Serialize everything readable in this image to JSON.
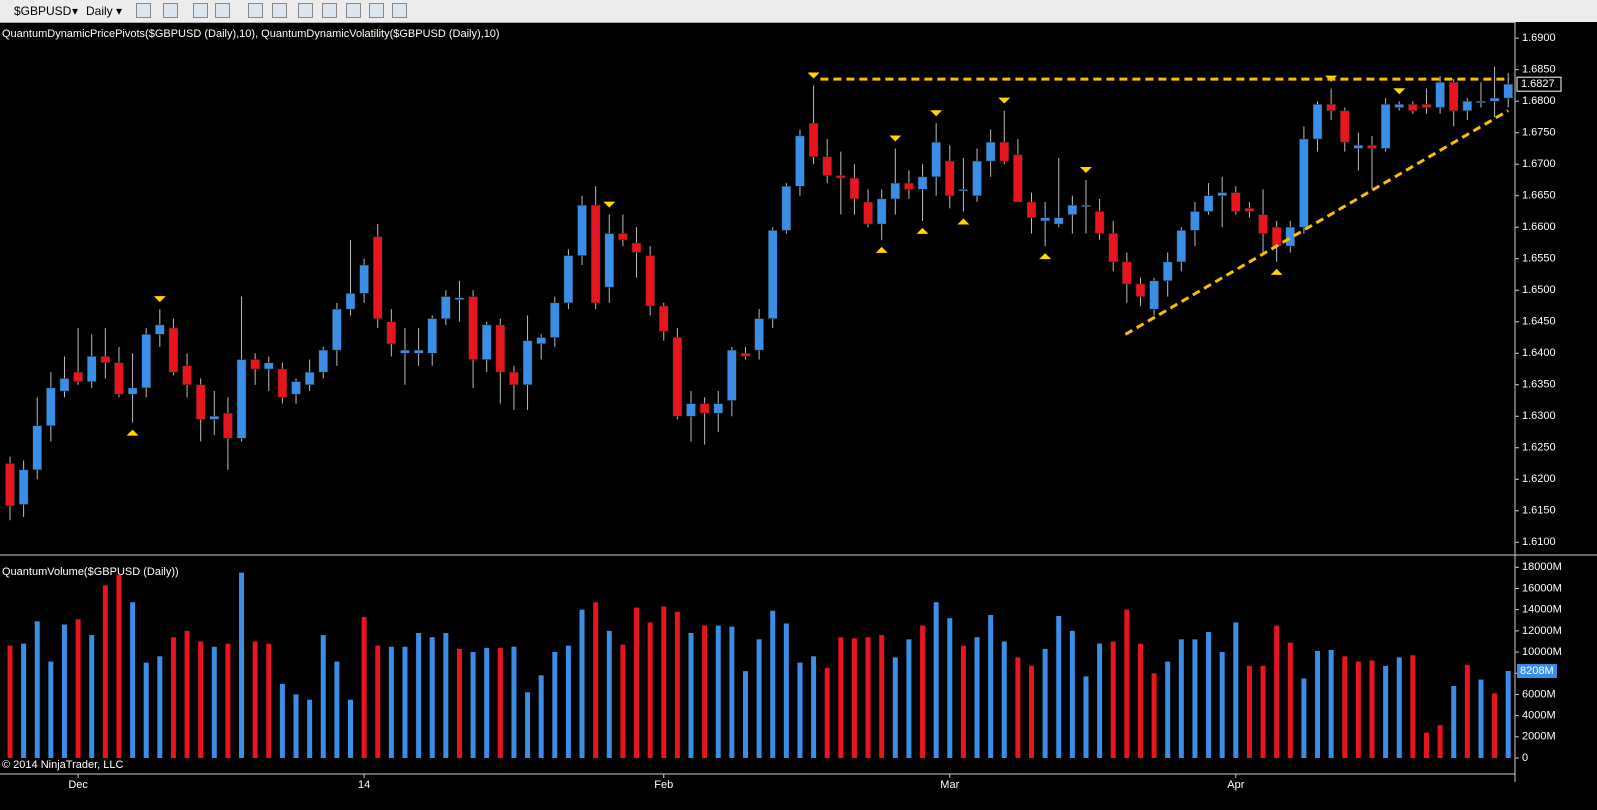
{
  "toolbar": {
    "symbol": "$GBPUSD",
    "interval": "Daily"
  },
  "chart_data": [
    {
      "type": "candlestick",
      "title": "QuantumDynamicPricePivots($GBPUSD (Daily),10), QuantumDynamicVolatility($GBPUSD (Daily),10)",
      "up_color": "#3a8ee6",
      "down_color": "#e8141e",
      "pivot_color": "#ffd700",
      "line_color": "#f5c000",
      "open": [
        1.6225,
        1.616,
        1.6215,
        1.6285,
        1.634,
        1.637,
        1.6355,
        1.6395,
        1.6385,
        1.6335,
        1.6345,
        1.643,
        1.644,
        1.638,
        1.635,
        1.6295,
        1.6305,
        1.6265,
        1.639,
        1.6375,
        1.6375,
        1.6335,
        1.635,
        1.637,
        1.6405,
        1.647,
        1.6495,
        1.6585,
        1.645,
        1.64,
        1.64,
        1.64,
        1.6455,
        1.6485,
        1.649,
        1.639,
        1.6445,
        1.637,
        1.635,
        1.6415,
        1.6425,
        1.648,
        1.6555,
        1.6635,
        1.6505,
        1.659,
        1.6575,
        1.6555,
        1.6475,
        1.6425,
        1.63,
        1.632,
        1.6305,
        1.6325,
        1.64,
        1.6405,
        1.6455,
        1.6595,
        1.6665,
        1.6765,
        1.6712,
        1.6682,
        1.6678,
        1.664,
        1.6605,
        1.6645,
        1.667,
        1.666,
        1.668,
        1.6705,
        1.666,
        1.665,
        1.6705,
        1.6735,
        1.6715,
        1.664,
        1.661,
        1.6605,
        1.662,
        1.6635,
        1.6625,
        1.659,
        1.6545,
        1.651,
        1.647,
        1.6515,
        1.6545,
        1.6595,
        1.6625,
        1.665,
        1.6655,
        1.663,
        1.662,
        1.66,
        1.657,
        1.66,
        1.674,
        1.6795,
        1.6785,
        1.6725,
        1.673,
        1.6725,
        1.679,
        1.6795,
        1.6795,
        1.679,
        1.683,
        1.6785,
        1.6798,
        1.68,
        1.6805
      ],
      "high": [
        1.6236,
        1.623,
        1.633,
        1.637,
        1.6395,
        1.644,
        1.643,
        1.644,
        1.641,
        1.64,
        1.644,
        1.647,
        1.6455,
        1.64,
        1.636,
        1.634,
        1.633,
        1.649,
        1.64,
        1.6395,
        1.6385,
        1.636,
        1.639,
        1.641,
        1.648,
        1.658,
        1.655,
        1.6605,
        1.647,
        1.644,
        1.644,
        1.646,
        1.65,
        1.6515,
        1.65,
        1.645,
        1.6455,
        1.638,
        1.646,
        1.643,
        1.649,
        1.6565,
        1.665,
        1.6665,
        1.662,
        1.662,
        1.66,
        1.657,
        1.648,
        1.644,
        1.634,
        1.633,
        1.634,
        1.641,
        1.641,
        1.647,
        1.66,
        1.667,
        1.6755,
        1.6825,
        1.674,
        1.672,
        1.67,
        1.666,
        1.666,
        1.6725,
        1.669,
        1.67,
        1.6765,
        1.673,
        1.671,
        1.6725,
        1.6755,
        1.6785,
        1.674,
        1.6655,
        1.664,
        1.671,
        1.665,
        1.6675,
        1.6645,
        1.661,
        1.656,
        1.652,
        1.652,
        1.656,
        1.66,
        1.664,
        1.667,
        1.668,
        1.6665,
        1.664,
        1.666,
        1.661,
        1.661,
        1.676,
        1.68,
        1.682,
        1.679,
        1.675,
        1.6745,
        1.6805,
        1.68,
        1.68,
        1.682,
        1.684,
        1.6835,
        1.6805,
        1.683,
        1.6855,
        1.6845
      ],
      "low": [
        1.6135,
        1.614,
        1.62,
        1.626,
        1.633,
        1.635,
        1.6345,
        1.636,
        1.633,
        1.629,
        1.633,
        1.641,
        1.6365,
        1.633,
        1.626,
        1.627,
        1.6215,
        1.626,
        1.635,
        1.634,
        1.632,
        1.632,
        1.634,
        1.636,
        1.638,
        1.646,
        1.648,
        1.644,
        1.6395,
        1.635,
        1.638,
        1.638,
        1.6445,
        1.645,
        1.6345,
        1.637,
        1.632,
        1.631,
        1.631,
        1.639,
        1.641,
        1.647,
        1.654,
        1.647,
        1.648,
        1.657,
        1.652,
        1.646,
        1.642,
        1.6295,
        1.626,
        1.6255,
        1.6275,
        1.63,
        1.639,
        1.639,
        1.644,
        1.659,
        1.665,
        1.67,
        1.667,
        1.662,
        1.662,
        1.66,
        1.658,
        1.662,
        1.6645,
        1.661,
        1.665,
        1.663,
        1.6625,
        1.664,
        1.668,
        1.67,
        1.664,
        1.659,
        1.657,
        1.66,
        1.659,
        1.659,
        1.658,
        1.653,
        1.648,
        1.6475,
        1.646,
        1.649,
        1.653,
        1.657,
        1.662,
        1.66,
        1.662,
        1.6615,
        1.656,
        1.6545,
        1.656,
        1.659,
        1.672,
        1.677,
        1.672,
        1.669,
        1.666,
        1.672,
        1.6785,
        1.678,
        1.678,
        1.678,
        1.676,
        1.677,
        1.679,
        1.6775,
        1.679
      ],
      "close": [
        1.6158,
        1.6215,
        1.6285,
        1.6345,
        1.636,
        1.6355,
        1.6395,
        1.6385,
        1.6335,
        1.6345,
        1.643,
        1.6445,
        1.637,
        1.635,
        1.6295,
        1.63,
        1.6265,
        1.639,
        1.6375,
        1.6385,
        1.633,
        1.6355,
        1.637,
        1.6405,
        1.647,
        1.6495,
        1.654,
        1.6455,
        1.6415,
        1.6405,
        1.6405,
        1.6455,
        1.649,
        1.6488,
        1.639,
        1.6445,
        1.637,
        1.635,
        1.642,
        1.6425,
        1.648,
        1.6555,
        1.6635,
        1.648,
        1.659,
        1.658,
        1.656,
        1.6475,
        1.6435,
        1.63,
        1.632,
        1.6305,
        1.632,
        1.6405,
        1.6395,
        1.6455,
        1.6595,
        1.6665,
        1.6745,
        1.6712,
        1.6682,
        1.6678,
        1.6645,
        1.6605,
        1.6645,
        1.667,
        1.666,
        1.668,
        1.6735,
        1.665,
        1.666,
        1.6705,
        1.6735,
        1.6705,
        1.664,
        1.6615,
        1.6615,
        1.6615,
        1.6635,
        1.6635,
        1.659,
        1.6545,
        1.651,
        1.649,
        1.6515,
        1.6545,
        1.6595,
        1.6625,
        1.665,
        1.6655,
        1.6625,
        1.6625,
        1.659,
        1.657,
        1.66,
        1.674,
        1.6795,
        1.6785,
        1.6735,
        1.673,
        1.6725,
        1.6795,
        1.6795,
        1.6785,
        1.679,
        1.683,
        1.6785,
        1.68,
        1.68,
        1.6805,
        1.6827
      ],
      "last_value_label": "1.6827",
      "pivot_highs": [
        11,
        44,
        59,
        65,
        68,
        73,
        79,
        97,
        102
      ],
      "pivot_lows": [
        9,
        64,
        67,
        70,
        76,
        93
      ],
      "lines": [
        {
          "x": [
            59.5,
            110.1
          ],
          "y": [
            1.6835,
            1.6835
          ]
        },
        {
          "x": [
            81.9,
            110
          ],
          "y": [
            1.643,
            1.6785
          ]
        }
      ],
      "ylim": [
        1.6083,
        1.6913
      ],
      "yticks": [
        {
          "value": 1.61,
          "label": "1.6100"
        },
        {
          "value": 1.615,
          "label": "1.6150"
        },
        {
          "value": 1.62,
          "label": "1.6200"
        },
        {
          "value": 1.625,
          "label": "1.6250"
        },
        {
          "value": 1.63,
          "label": "1.6300"
        },
        {
          "value": 1.635,
          "label": "1.6350"
        },
        {
          "value": 1.64,
          "label": "1.6400"
        },
        {
          "value": 1.645,
          "label": "1.6450"
        },
        {
          "value": 1.65,
          "label": "1.6500"
        },
        {
          "value": 1.655,
          "label": "1.6550"
        },
        {
          "value": 1.66,
          "label": "1.6600"
        },
        {
          "value": 1.665,
          "label": "1.6650"
        },
        {
          "value": 1.67,
          "label": "1.6700"
        },
        {
          "value": 1.675,
          "label": "1.6750"
        },
        {
          "value": 1.68,
          "label": "1.6800"
        },
        {
          "value": 1.685,
          "label": "1.6850"
        },
        {
          "value": 1.69,
          "label": "1.6900"
        }
      ]
    },
    {
      "type": "bar",
      "title": "QuantumVolume($GBPUSD (Daily))",
      "footer": "© 2014 NinjaTrader, LLC",
      "categories": [
        null,
        null,
        null,
        null,
        null,
        "Dec",
        null,
        null,
        null,
        null,
        null,
        null,
        null,
        null,
        null,
        null,
        null,
        null,
        null,
        null,
        null,
        null,
        null,
        null,
        null,
        null,
        "14",
        null,
        null,
        null,
        null,
        null,
        null,
        null,
        null,
        null,
        null,
        null,
        null,
        null,
        null,
        null,
        null,
        null,
        null,
        null,
        null,
        null,
        "Feb",
        null,
        null,
        null,
        null,
        null,
        null,
        null,
        null,
        null,
        null,
        null,
        null,
        null,
        null,
        null,
        null,
        null,
        null,
        null,
        null,
        "Mar",
        null,
        null,
        null,
        null,
        null,
        null,
        null,
        null,
        null,
        null,
        null,
        null,
        null,
        null,
        null,
        null,
        null,
        null,
        null,
        null,
        "Apr",
        null,
        null,
        null,
        null,
        null,
        null,
        null,
        null,
        null,
        null,
        null,
        null,
        null,
        null,
        null,
        null,
        null,
        null,
        null,
        null
      ],
      "values": [
        10600,
        10800,
        12900,
        9100,
        12600,
        13100,
        11600,
        16300,
        17300,
        14700,
        9000,
        9600,
        11400,
        12000,
        11000,
        10500,
        10800,
        17500,
        11000,
        10800,
        7000,
        6000,
        5500,
        11600,
        9100,
        5500,
        13300,
        10600,
        10500,
        10500,
        11800,
        11400,
        11800,
        10300,
        10000,
        10400,
        10400,
        10500,
        6200,
        7800,
        10000,
        10600,
        14000,
        14700,
        12000,
        10700,
        14200,
        12800,
        14300,
        13800,
        11800,
        12500,
        12500,
        12400,
        8200,
        11200,
        13900,
        12700,
        9000,
        9600,
        8500,
        11400,
        11300,
        11400,
        11600,
        9500,
        11200,
        12500,
        14700,
        13200,
        10600,
        11400,
        13500,
        11000,
        9500,
        8700,
        10300,
        13400,
        12000,
        7700,
        10800,
        11000,
        14000,
        10800,
        8000,
        9100,
        11200,
        11200,
        11900,
        10000,
        12800,
        8700,
        8700,
        12500,
        10900,
        7500,
        10100,
        10200,
        9600,
        9100,
        9200,
        8700,
        9500,
        9700,
        2400,
        3100,
        6800,
        8800,
        7400,
        6100,
        8208
      ],
      "colors": [
        "#e8141e",
        "#3a8ee6",
        "#3a8ee6",
        "#3a8ee6",
        "#3a8ee6",
        "#e8141e",
        "#3a8ee6",
        "#e8141e",
        "#e8141e",
        "#3a8ee6",
        "#3a8ee6",
        "#3a8ee6",
        "#e8141e",
        "#e8141e",
        "#e8141e",
        "#3a8ee6",
        "#e8141e",
        "#3a8ee6",
        "#e8141e",
        "#e8141e",
        "#3a8ee6",
        "#3a8ee6",
        "#3a8ee6",
        "#3a8ee6",
        "#3a8ee6",
        "#3a8ee6",
        "#e8141e",
        "#e8141e",
        "#3a8ee6",
        "#3a8ee6",
        "#3a8ee6",
        "#3a8ee6",
        "#3a8ee6",
        "#e8141e",
        "#3a8ee6",
        "#3a8ee6",
        "#e8141e",
        "#3a8ee6",
        "#3a8ee6",
        "#3a8ee6",
        "#3a8ee6",
        "#3a8ee6",
        "#3a8ee6",
        "#e8141e",
        "#3a8ee6",
        "#e8141e",
        "#e8141e",
        "#e8141e",
        "#e8141e",
        "#e8141e",
        "#3a8ee6",
        "#e8141e",
        "#3a8ee6",
        "#3a8ee6",
        "#3a8ee6",
        "#3a8ee6",
        "#3a8ee6",
        "#3a8ee6",
        "#3a8ee6",
        "#3a8ee6",
        "#e8141e",
        "#e8141e",
        "#e8141e",
        "#e8141e",
        "#e8141e",
        "#3a8ee6",
        "#3a8ee6",
        "#e8141e",
        "#3a8ee6",
        "#3a8ee6",
        "#e8141e",
        "#3a8ee6",
        "#3a8ee6",
        "#3a8ee6",
        "#e8141e",
        "#e8141e",
        "#3a8ee6",
        "#3a8ee6",
        "#3a8ee6",
        "#3a8ee6",
        "#3a8ee6",
        "#e8141e",
        "#e8141e",
        "#e8141e",
        "#e8141e",
        "#3a8ee6",
        "#3a8ee6",
        "#3a8ee6",
        "#3a8ee6",
        "#3a8ee6",
        "#3a8ee6",
        "#e8141e",
        "#e8141e",
        "#e8141e",
        "#e8141e",
        "#3a8ee6",
        "#3a8ee6",
        "#3a8ee6",
        "#e8141e",
        "#e8141e",
        "#e8141e",
        "#3a8ee6",
        "#3a8ee6",
        "#e8141e",
        "#e8141e",
        "#e8141e",
        "#3a8ee6",
        "#e8141e",
        "#3a8ee6",
        "#e8141e",
        "#3a8ee6"
      ],
      "last_value_label": "8208M",
      "ylim": [
        0,
        18500
      ],
      "yticks": [
        0,
        {
          "value": 2000,
          "label": "2000M"
        },
        {
          "value": 4000,
          "label": "4000M"
        },
        {
          "value": 6000,
          "label": "6000M"
        },
        {
          "value": 8000,
          "label": "8000M"
        },
        {
          "value": 10000,
          "label": "10000M"
        },
        {
          "value": 12000,
          "label": "12000M"
        },
        {
          "value": 14000,
          "label": "14000M"
        },
        {
          "value": 16000,
          "label": "16000M"
        },
        {
          "value": 18000,
          "label": "18000M"
        }
      ]
    }
  ]
}
